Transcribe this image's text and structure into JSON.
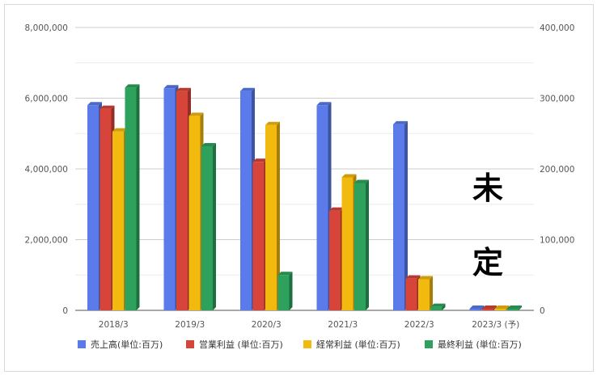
{
  "chart_data": {
    "type": "bar",
    "categories": [
      "2018/3",
      "2019/3",
      "2020/3",
      "2021/3",
      "2022/3",
      "2023/3 (予)"
    ],
    "series": [
      {
        "name": "売上高(単位:百万)",
        "axis": "left",
        "color": "#5b7bea",
        "values": [
          5800000,
          6280000,
          6200000,
          5800000,
          5260000,
          0
        ]
      },
      {
        "name": "営業利益 (単位:百万)",
        "axis": "right",
        "color": "#d6443a",
        "values": [
          285000,
          310000,
          210000,
          141000,
          45000,
          0
        ]
      },
      {
        "name": "経常利益 (単位:百万)",
        "axis": "right",
        "color": "#f2b90f",
        "values": [
          253000,
          275000,
          262000,
          188000,
          44000,
          0
        ]
      },
      {
        "name": "最終利益 (単位:百万)",
        "axis": "right",
        "color": "#2ea25d",
        "values": [
          315000,
          232000,
          50000,
          180000,
          5000,
          0
        ]
      }
    ],
    "y_left": {
      "min": 0,
      "max": 8000000,
      "ticks": [
        "0",
        "2,000,000",
        "4,000,000",
        "6,000,000",
        "8,000,000"
      ]
    },
    "y_right": {
      "min": 0,
      "max": 400000,
      "ticks": [
        "0",
        "100,000",
        "200,000",
        "300,000",
        "400,000"
      ]
    },
    "grid": true,
    "legend_position": "bottom",
    "annotation": [
      "未",
      "定"
    ]
  }
}
